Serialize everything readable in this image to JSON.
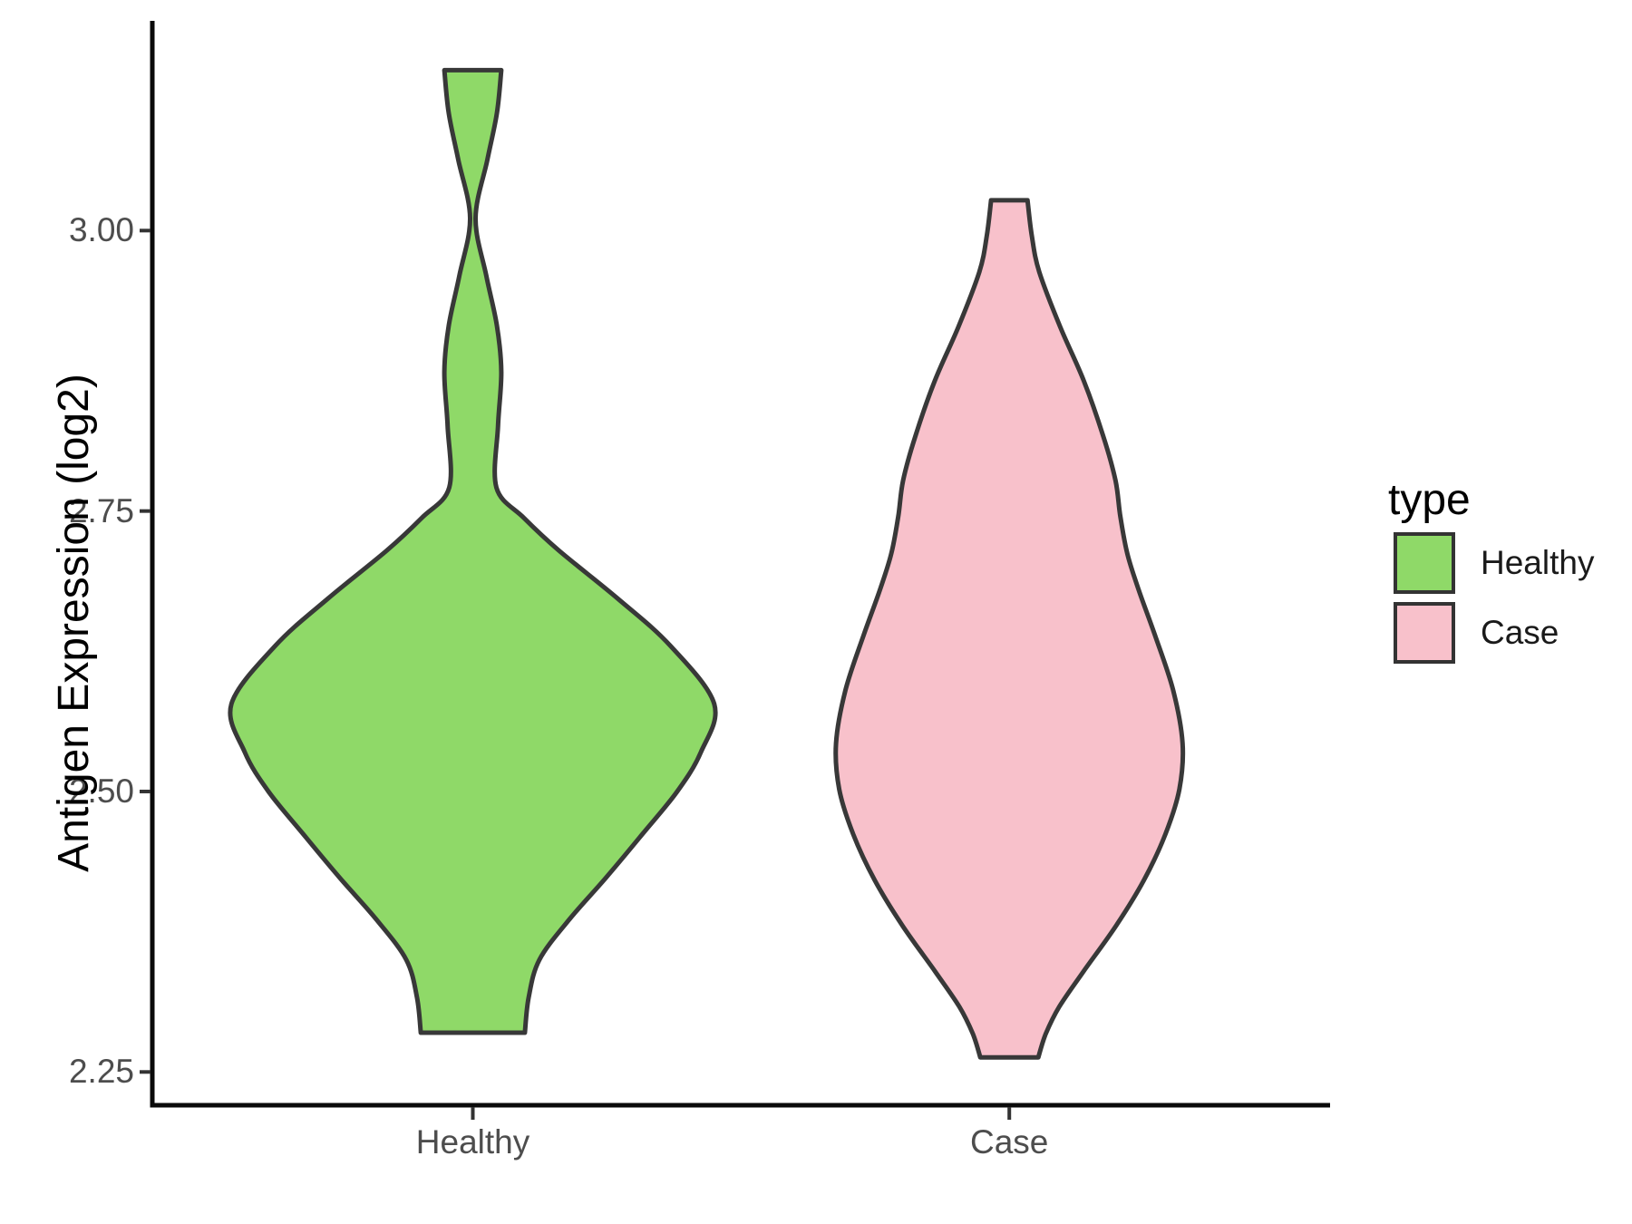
{
  "y_axis": {
    "title": "Antigen Expression (log2)",
    "tick_labels": [
      "2.25",
      "2.50",
      "2.75",
      "3.00"
    ]
  },
  "x_axis": {
    "categories": [
      "Healthy",
      "Case"
    ]
  },
  "legend": {
    "title": "type",
    "items": [
      {
        "label": "Healthy",
        "color": "#8FD968"
      },
      {
        "label": "Case",
        "color": "#F8C1CB"
      }
    ]
  },
  "colors": {
    "healthy_fill": "#8FD968",
    "case_fill": "#F8C1CB",
    "violin_outline": "#383838",
    "axis_line": "#0a0a0a",
    "tick_mark": "#333333",
    "tick_text": "#4d4d4d",
    "title_text": "#000000",
    "background": "#ffffff"
  },
  "chart_data": {
    "type": "violin",
    "title": "",
    "xlabel": "",
    "ylabel": "Antigen Expression (log2)",
    "categories": [
      "Healthy",
      "Case"
    ],
    "y_ticks": [
      {
        "value": 2.25,
        "label": "2.25"
      },
      {
        "value": 2.5,
        "label": "2.50"
      },
      {
        "value": 2.75,
        "label": "2.75"
      },
      {
        "value": 3.0,
        "label": "3.00"
      }
    ],
    "ylim": [
      2.22,
      3.19
    ],
    "grid": false,
    "legend_position": "right",
    "legend_title": "type",
    "series": [
      {
        "name": "Healthy",
        "fill": "#8FD968",
        "outline": "#383838",
        "value_range": [
          2.285,
          3.143
        ],
        "density": [
          [
            3.143,
            0.053
          ],
          [
            3.105,
            0.045
          ],
          [
            3.063,
            0.027
          ],
          [
            3.011,
            0.005
          ],
          [
            2.96,
            0.025
          ],
          [
            2.915,
            0.045
          ],
          [
            2.874,
            0.053
          ],
          [
            2.826,
            0.047
          ],
          [
            2.771,
            0.044
          ],
          [
            2.744,
            0.095
          ],
          [
            2.715,
            0.16
          ],
          [
            2.672,
            0.27
          ],
          [
            2.63,
            0.368
          ],
          [
            2.578,
            0.45
          ],
          [
            2.535,
            0.425
          ],
          [
            2.5,
            0.381
          ],
          [
            2.462,
            0.316
          ],
          [
            2.423,
            0.248
          ],
          [
            2.386,
            0.18
          ],
          [
            2.35,
            0.124
          ],
          [
            2.316,
            0.104
          ],
          [
            2.285,
            0.097
          ]
        ]
      },
      {
        "name": "Case",
        "fill": "#F8C1CB",
        "outline": "#383838",
        "value_range": [
          2.263,
          3.027
        ],
        "density": [
          [
            3.027,
            0.034
          ],
          [
            2.995,
            0.042
          ],
          [
            2.963,
            0.056
          ],
          [
            2.914,
            0.095
          ],
          [
            2.866,
            0.139
          ],
          [
            2.817,
            0.175
          ],
          [
            2.777,
            0.198
          ],
          [
            2.745,
            0.207
          ],
          [
            2.712,
            0.22
          ],
          [
            2.68,
            0.241
          ],
          [
            2.64,
            0.271
          ],
          [
            2.591,
            0.305
          ],
          [
            2.543,
            0.323
          ],
          [
            2.502,
            0.317
          ],
          [
            2.462,
            0.291
          ],
          [
            2.421,
            0.251
          ],
          [
            2.381,
            0.2
          ],
          [
            2.34,
            0.139
          ],
          [
            2.308,
            0.093
          ],
          [
            2.284,
            0.068
          ],
          [
            2.263,
            0.054
          ]
        ]
      }
    ]
  }
}
